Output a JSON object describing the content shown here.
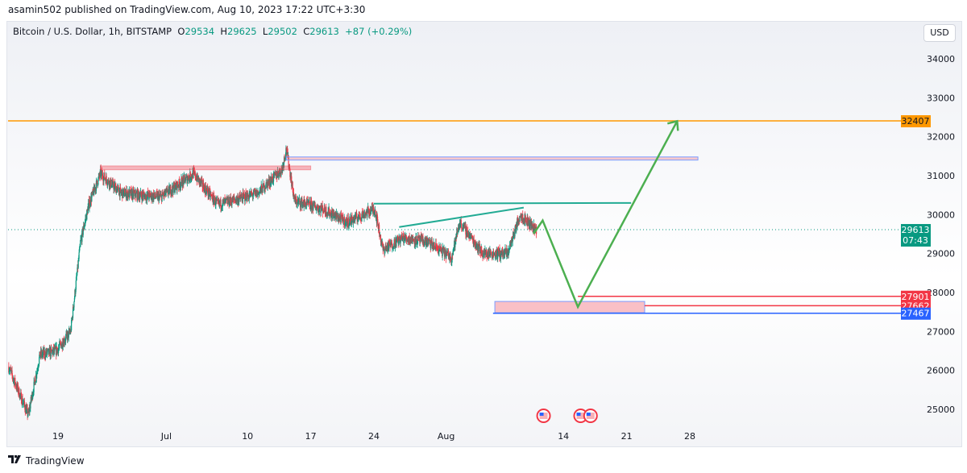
{
  "header": {
    "published": "asamin502 published on TradingView.com, Aug 10, 2023 17:22 UTC+3:30"
  },
  "legend": {
    "symbol": "Bitcoin / U.S. Dollar, 1h, BITSTAMP",
    "o_label": "O",
    "o": "29534",
    "h_label": "H",
    "h": "29625",
    "l_label": "L",
    "l": "29502",
    "c_label": "C",
    "c": "29613",
    "change": "+87 (+0.29%)"
  },
  "currency_button": "USD",
  "footer": {
    "brand": "TradingView",
    "logo": "TV"
  },
  "colors": {
    "up": "#089981",
    "down": "#f23645",
    "orange": "#ff9800",
    "blue": "#2962ff",
    "green": "#4caf50",
    "teal": "#22ab94"
  },
  "chart_data": {
    "type": "candlestick",
    "title": "Bitcoin / U.S. Dollar, 1h, BITSTAMP",
    "ylim": [
      24700,
      34800
    ],
    "y_ticks": [
      "25000",
      "26000",
      "27000",
      "28000",
      "29000",
      "30000",
      "31000",
      "32000",
      "33000",
      "34000"
    ],
    "x_ticks": [
      {
        "day": 0,
        "label": "19"
      },
      {
        "day": 12,
        "label": "Jul"
      },
      {
        "day": 21,
        "label": "10"
      },
      {
        "day": 28,
        "label": "17"
      },
      {
        "day": 35,
        "label": "24"
      },
      {
        "day": 43,
        "label": "Aug"
      },
      {
        "day": 56,
        "label": "14"
      },
      {
        "day": 63,
        "label": "21"
      },
      {
        "day": 70,
        "label": "28"
      }
    ],
    "x_note": "day 0 = Jun 19",
    "price_path": [
      [
        -5.5,
        26100
      ],
      [
        -3.3,
        24850
      ],
      [
        -2,
        26400
      ],
      [
        -0.2,
        26500
      ],
      [
        1.4,
        27000
      ],
      [
        2.5,
        29300
      ],
      [
        3.4,
        30250
      ],
      [
        4.7,
        31050
      ],
      [
        7,
        30550
      ],
      [
        11.4,
        30450
      ],
      [
        15,
        31050
      ],
      [
        17.7,
        30250
      ],
      [
        22.1,
        30550
      ],
      [
        24.8,
        31150
      ],
      [
        25.3,
        31700
      ],
      [
        26.2,
        30350
      ],
      [
        29.3,
        30150
      ],
      [
        32,
        29800
      ],
      [
        35.1,
        30150
      ],
      [
        36,
        29100
      ],
      [
        38.2,
        29400
      ],
      [
        40.9,
        29300
      ],
      [
        43.6,
        28900
      ],
      [
        44.5,
        29800
      ],
      [
        47.1,
        29000
      ],
      [
        49.8,
        29000
      ],
      [
        51.2,
        30000
      ],
      [
        53,
        29613
      ]
    ],
    "price_labels": [
      {
        "value": 32407,
        "label": "32407",
        "color": "#ff9800"
      },
      {
        "value": 29613,
        "label": "29613",
        "sub": "07:43",
        "color": "#089981"
      },
      {
        "value": 27901,
        "label": "27901",
        "color": "#f23645"
      },
      {
        "value": 27662,
        "label": "27662",
        "color": "#f23645"
      },
      {
        "value": 27467,
        "label": "27467",
        "color": "#2962ff"
      }
    ],
    "drawings": {
      "horizontal_line": 32407,
      "resistance_zone": {
        "from_day": 4.7,
        "to_day": 28,
        "low": 31150,
        "high": 31250
      },
      "blue_zone": {
        "from_day": 25.3,
        "to_day": 70.9,
        "low": 31400,
        "high": 31480
      },
      "neckline": {
        "from": [
          35,
          30280
        ],
        "to": [
          63.5,
          30300
        ]
      },
      "rising_line": {
        "from": [
          37.8,
          29680
        ],
        "to": [
          51.6,
          30180
        ]
      },
      "projection": [
        [
          52.7,
          29510
        ],
        [
          53.7,
          29850
        ],
        [
          57.6,
          27630
        ],
        [
          68.6,
          32400
        ]
      ],
      "demand_zone": {
        "from_day": 48.4,
        "to_day": 65,
        "low": 27480,
        "high": 27770
      },
      "red_line_1": {
        "from_day": 57.6,
        "value": 27901
      },
      "red_line_2": {
        "from_day": 65,
        "value": 27662
      },
      "blue_line": {
        "from_day": 48.2,
        "value": 27467
      }
    },
    "events": [
      {
        "day": 53.8,
        "type": "US"
      },
      {
        "day": 57.9,
        "type": "US"
      },
      {
        "day": 59,
        "type": "US"
      }
    ]
  }
}
